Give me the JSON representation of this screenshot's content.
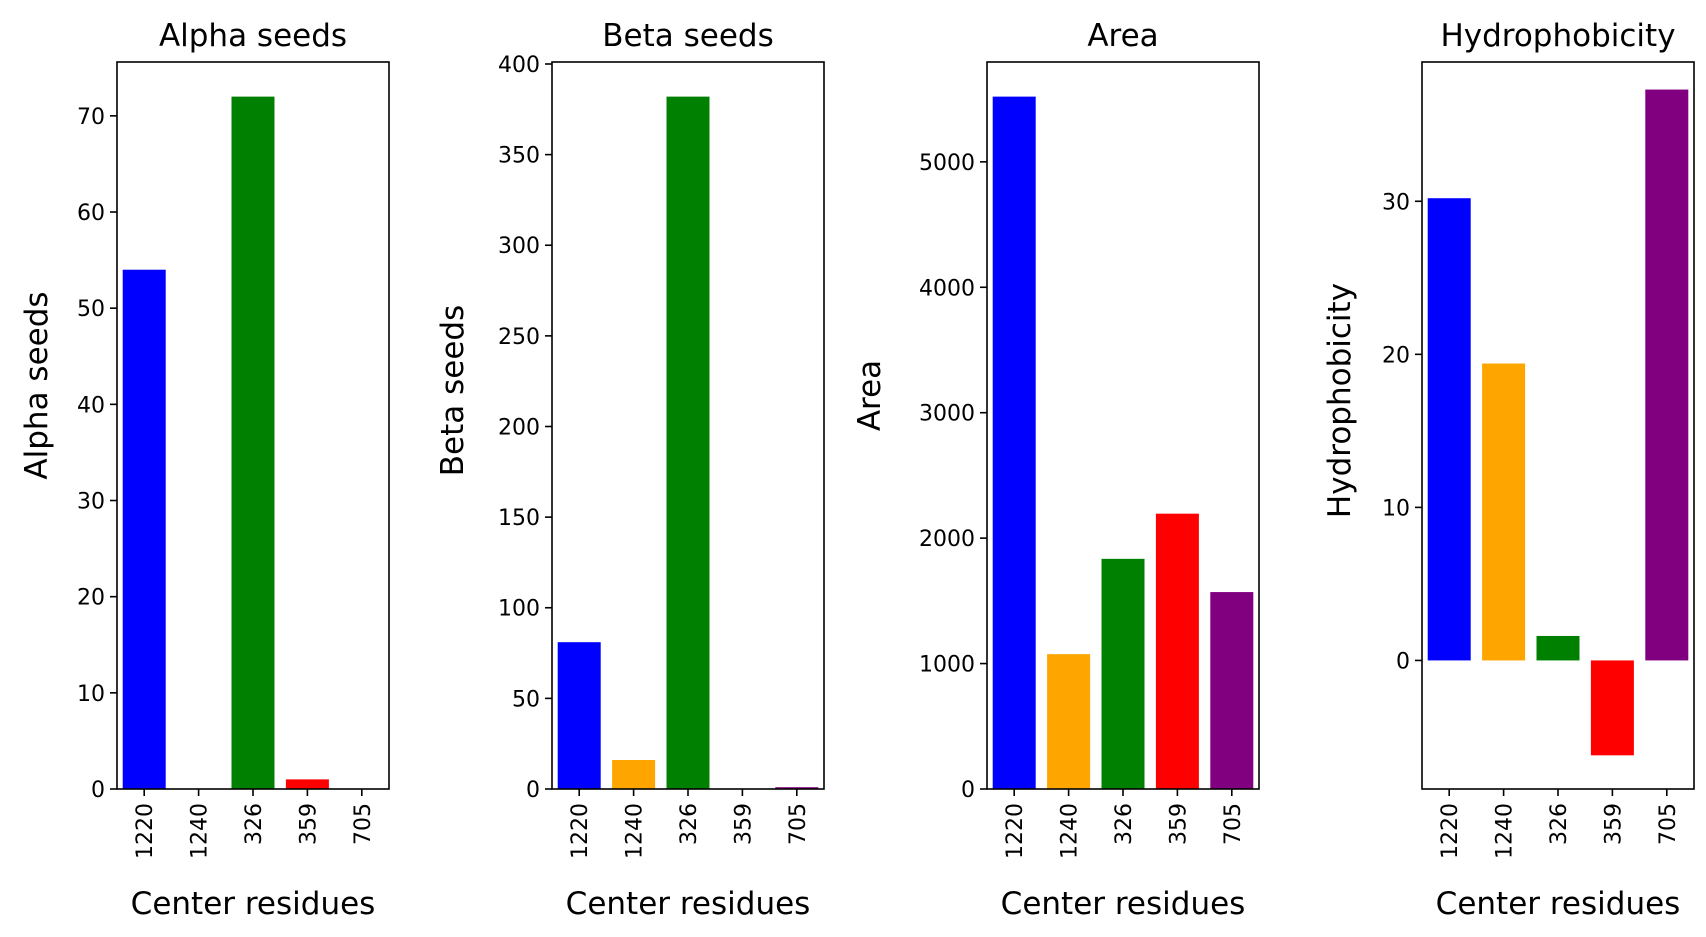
{
  "chart_data": [
    {
      "type": "bar",
      "title": "Alpha seeds",
      "xlabel": "Center residues",
      "ylabel": "Alpha seeds",
      "categories": [
        "1220",
        "1240",
        "326",
        "359",
        "705"
      ],
      "values": [
        54,
        0,
        72,
        1,
        0
      ],
      "colors": [
        "#0000ff",
        "#ffa500",
        "#008000",
        "#ff0000",
        "#800080"
      ],
      "ylim": [
        0,
        75.6
      ],
      "yticks": [
        0,
        10,
        20,
        30,
        40,
        50,
        60,
        70
      ],
      "ytick_labels": [
        "0",
        "10",
        "20",
        "30",
        "40",
        "50",
        "60",
        "70"
      ],
      "grid": false
    },
    {
      "type": "bar",
      "title": "Beta seeds",
      "xlabel": "Center residues",
      "ylabel": "Beta seeds",
      "categories": [
        "1220",
        "1240",
        "326",
        "359",
        "705"
      ],
      "values": [
        81,
        16,
        382,
        0,
        1
      ],
      "colors": [
        "#0000ff",
        "#ffa500",
        "#008000",
        "#ff0000",
        "#800080"
      ],
      "ylim": [
        0,
        401.1
      ],
      "yticks": [
        0,
        50,
        100,
        150,
        200,
        250,
        300,
        350,
        400
      ],
      "ytick_labels": [
        "0",
        "50",
        "100",
        "150",
        "200",
        "250",
        "300",
        "350",
        "400"
      ],
      "grid": false
    },
    {
      "type": "bar",
      "title": "Area",
      "xlabel": "Center residues",
      "ylabel": "Area",
      "categories": [
        "1220",
        "1240",
        "326",
        "359",
        "705"
      ],
      "values": [
        5520,
        1075,
        1835,
        2195,
        1570
      ],
      "colors": [
        "#0000ff",
        "#ffa500",
        "#008000",
        "#ff0000",
        "#800080"
      ],
      "ylim": [
        0,
        5796
      ],
      "yticks": [
        0,
        1000,
        2000,
        3000,
        4000,
        5000
      ],
      "ytick_labels": [
        "0",
        "1000",
        "2000",
        "3000",
        "4000",
        "5000"
      ],
      "grid": false
    },
    {
      "type": "bar",
      "title": "Hydrophobicity",
      "xlabel": "Center residues",
      "ylabel": "Hydrophobicity",
      "categories": [
        "1220",
        "1240",
        "326",
        "359",
        "705"
      ],
      "values": [
        30.2,
        19.4,
        1.6,
        -6.2,
        37.3
      ],
      "colors": [
        "#0000ff",
        "#ffa500",
        "#008000",
        "#ff0000",
        "#800080"
      ],
      "ylim": [
        -8.4,
        39.1
      ],
      "yticks": [
        0,
        10,
        20,
        30
      ],
      "ytick_labels": [
        "0",
        "10",
        "20",
        "30"
      ],
      "grid": false
    }
  ]
}
